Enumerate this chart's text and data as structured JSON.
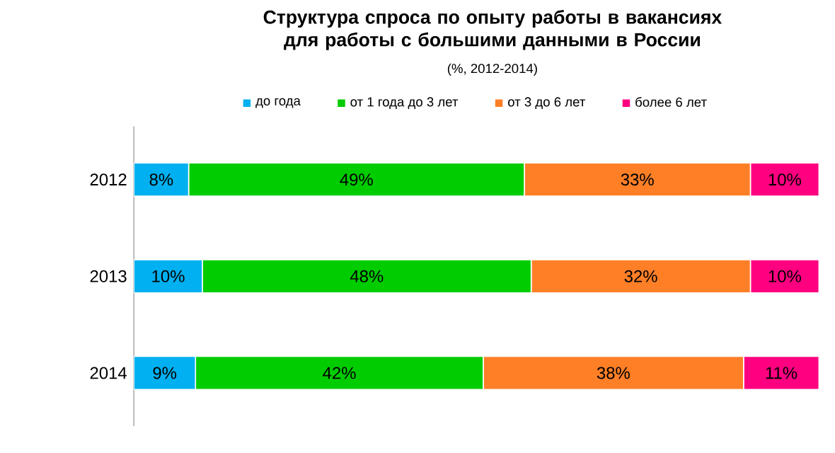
{
  "chart_data": {
    "type": "bar",
    "orientation": "horizontal",
    "stacked": true,
    "title": "Структура спроса по опыту работы в вакансиях для работы с большими данными в России",
    "subtitle": "(%, 2012-2014)",
    "categories": [
      "2012",
      "2013",
      "2014"
    ],
    "tick_labels": "y",
    "legend": "top",
    "series": [
      {
        "name": "до года",
        "color": "#00b0f0",
        "values": [
          8,
          10,
          9
        ],
        "value_labels": [
          "8%",
          "10%",
          "9%"
        ]
      },
      {
        "name": "от 1 года до 3 лет",
        "color": "#00cc00",
        "values": [
          49,
          48,
          42
        ],
        "value_labels": [
          "49%",
          "48%",
          "42%"
        ]
      },
      {
        "name": "от 3 до 6 лет",
        "color": "#ff7f27",
        "values": [
          33,
          32,
          38
        ],
        "value_labels": [
          "33%",
          "32%",
          "38%"
        ]
      },
      {
        "name": "более 6 лет",
        "color": "#ff0080",
        "values": [
          10,
          10,
          11
        ],
        "value_labels": [
          "10%",
          "10%",
          "11%"
        ]
      }
    ]
  }
}
